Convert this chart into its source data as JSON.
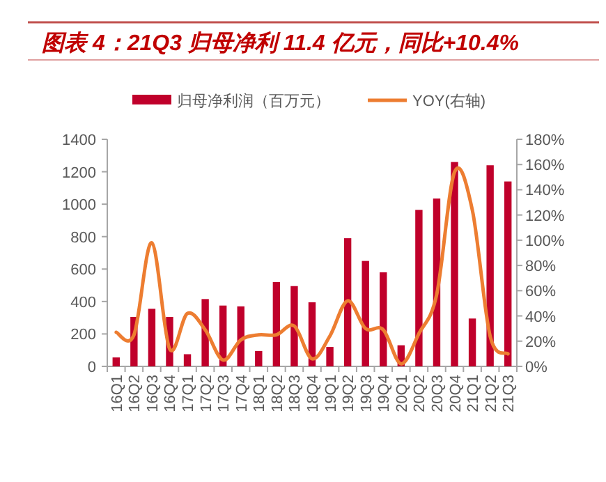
{
  "chart_data": {
    "type": "bar",
    "title": "图表 4：21Q3 归母净利 11.4 亿元，同比+10.4%",
    "categories": [
      "16Q1",
      "16Q2",
      "16Q3",
      "16Q4",
      "17Q1",
      "17Q2",
      "17Q3",
      "17Q4",
      "18Q1",
      "18Q2",
      "18Q3",
      "18Q4",
      "19Q1",
      "19Q2",
      "19Q3",
      "19Q4",
      "20Q1",
      "20Q2",
      "20Q3",
      "20Q4",
      "21Q1",
      "21Q2",
      "21Q3"
    ],
    "series": [
      {
        "name": "归母净利润（百万元）",
        "color": "#c0002b",
        "values": [
          55,
          305,
          355,
          305,
          75,
          415,
          375,
          370,
          95,
          520,
          495,
          395,
          120,
          790,
          650,
          580,
          130,
          965,
          1035,
          1260,
          295,
          1240,
          1140
        ]
      },
      {
        "name": "YOY(右轴)",
        "type": "line",
        "axis": "y2",
        "color": "#ed7d31",
        "values": [
          27,
          25,
          98,
          14,
          42,
          29,
          5,
          21,
          25,
          25,
          32,
          6,
          24,
          52,
          30,
          29,
          2,
          26,
          57,
          154,
          124,
          24,
          10
        ]
      }
    ],
    "ylim": [
      0,
      1400
    ],
    "yticks": [
      0,
      200,
      400,
      600,
      800,
      1000,
      1200,
      1400
    ],
    "y2lim": [
      0,
      180
    ],
    "y2ticks": [
      {
        "value": 0,
        "label": "0%"
      },
      {
        "value": 20,
        "label": "20%"
      },
      {
        "value": 40,
        "label": "40%"
      },
      {
        "value": 60,
        "label": "60%"
      },
      {
        "value": 80,
        "label": "80%"
      },
      {
        "value": 100,
        "label": "100%"
      },
      {
        "value": 120,
        "label": "120%"
      },
      {
        "value": 140,
        "label": "140%"
      },
      {
        "value": 160,
        "label": "160%"
      },
      {
        "value": 180,
        "label": "180%"
      }
    ],
    "grid": false,
    "legend": "top",
    "marker": "none",
    "line_style": "solid"
  }
}
